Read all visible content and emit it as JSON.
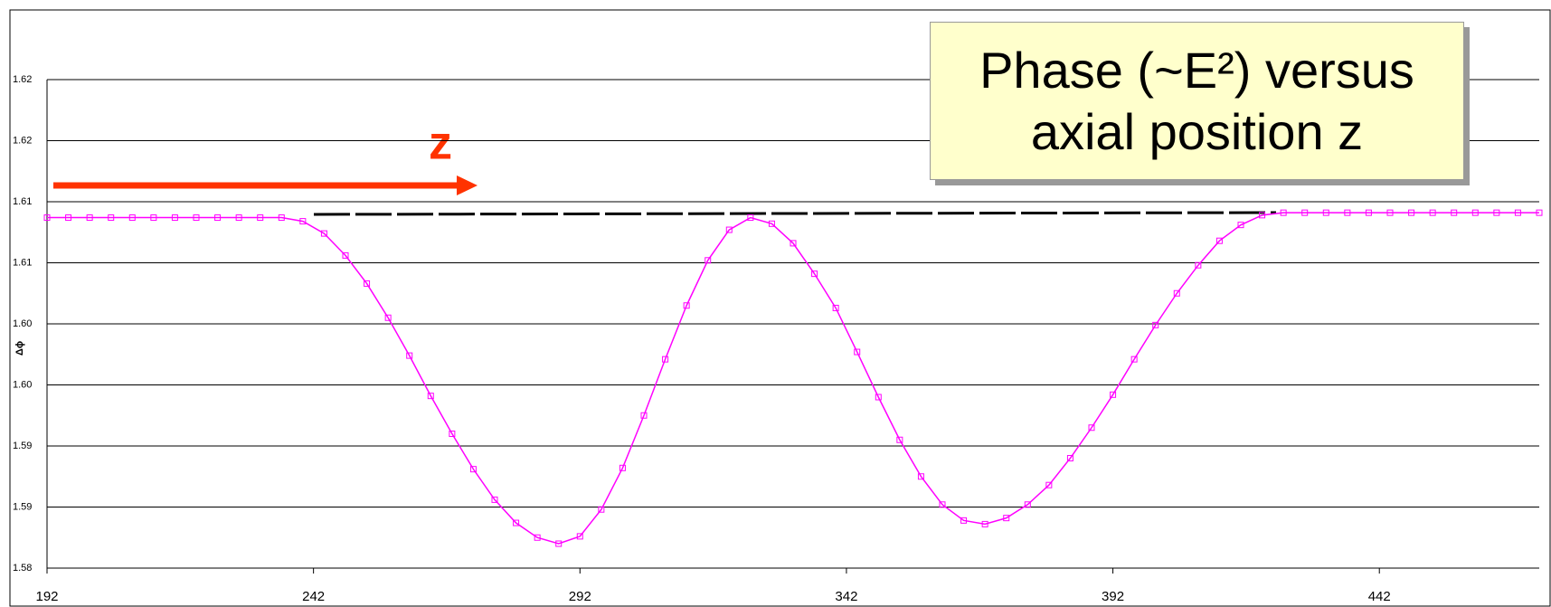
{
  "chart_data": {
    "type": "line",
    "title": "Phase (~E²) versus axial position z",
    "y_label": "Δϕ",
    "annotation": "z",
    "x": [
      192,
      196,
      200,
      204,
      208,
      212,
      216,
      220,
      224,
      228,
      232,
      236,
      240,
      244,
      248,
      252,
      256,
      260,
      264,
      268,
      272,
      276,
      280,
      284,
      288,
      292,
      296,
      300,
      304,
      308,
      312,
      316,
      320,
      324,
      328,
      332,
      336,
      340,
      344,
      348,
      352,
      356,
      360,
      364,
      368,
      372,
      376,
      380,
      384,
      388,
      392,
      396,
      400,
      404,
      408,
      412,
      416,
      420,
      424,
      428,
      432,
      436,
      440,
      444,
      448,
      452,
      456,
      460,
      464,
      468,
      472
    ],
    "series": [
      {
        "name": "Δϕ",
        "color": "#ff00ff",
        "values": [
          1.6087,
          1.6087,
          1.6087,
          1.6087,
          1.6087,
          1.6087,
          1.6087,
          1.6087,
          1.6087,
          1.6087,
          1.6087,
          1.6087,
          1.6084,
          1.6074,
          1.6056,
          1.6033,
          1.6005,
          1.5974,
          1.5941,
          1.591,
          1.5881,
          1.5856,
          1.5837,
          1.5825,
          1.582,
          1.5826,
          1.5848,
          1.5882,
          1.5925,
          1.5971,
          1.6015,
          1.6052,
          1.6077,
          1.6087,
          1.6082,
          1.6066,
          1.6041,
          1.6013,
          1.5977,
          1.594,
          1.5905,
          1.5875,
          1.5852,
          1.5839,
          1.5836,
          1.5841,
          1.5852,
          1.5868,
          1.589,
          1.5915,
          1.5942,
          1.5971,
          1.5999,
          1.6025,
          1.6048,
          1.6068,
          1.6081,
          1.6089,
          1.6091,
          1.6091,
          1.6091,
          1.6091,
          1.6091,
          1.6091,
          1.6091,
          1.6091,
          1.6091,
          1.6091,
          1.6091,
          1.6091,
          1.6091
        ]
      }
    ],
    "xlim": [
      192,
      472
    ],
    "xticks": [
      192,
      242,
      292,
      342,
      392,
      442
    ],
    "ylim": [
      1.58,
      1.62
    ],
    "yticks": [
      1.58,
      {
        "value": 1.585,
        "label": "1.59"
      },
      1.59,
      {
        "value": 1.595,
        "label": "1.60"
      },
      {
        "value": 1.6,
        "label": "1.60"
      },
      {
        "value": 1.605,
        "label": "1.61"
      },
      1.61,
      {
        "value": 1.615,
        "label": "1.62"
      },
      1.62
    ],
    "grid": true
  }
}
